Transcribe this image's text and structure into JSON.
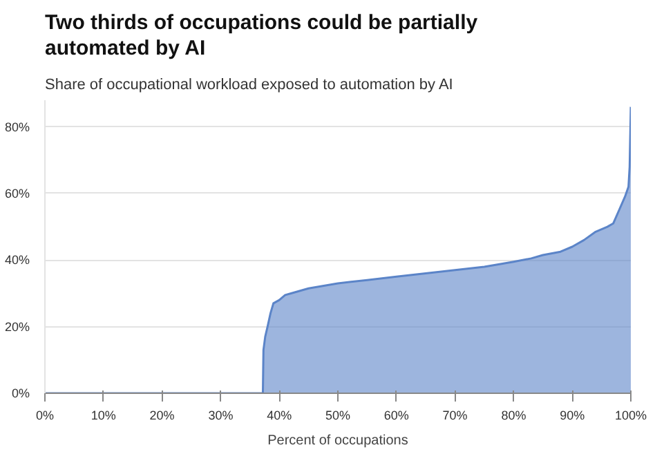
{
  "chart_data": {
    "type": "area",
    "title": "Two thirds of occupations could be partially automated by AI",
    "subtitle": "Share of occupational workload exposed to automation by AI",
    "xlabel": "Percent of occupations",
    "x": [
      0,
      37.2,
      37.3,
      37.6,
      38,
      38.5,
      39,
      40,
      41,
      42,
      45,
      50,
      55,
      60,
      65,
      70,
      75,
      80,
      83,
      85,
      88,
      90,
      92,
      94,
      96,
      97,
      98,
      99,
      99.6,
      99.8,
      100
    ],
    "series": [
      {
        "color": "#5b84c8",
        "values": [
          0,
          0,
          13,
          17,
          20,
          24,
          27,
          28,
          29.5,
          30,
          31.5,
          33,
          34,
          35,
          36,
          37,
          38,
          39.5,
          40.5,
          41.5,
          42.5,
          44,
          46,
          48.5,
          50,
          51,
          55,
          59,
          62,
          68,
          86
        ]
      }
    ],
    "xlim": [
      0,
      100
    ],
    "ylim": [
      0,
      88
    ],
    "xticks": [
      {
        "value": 0,
        "label": "0%"
      },
      {
        "value": 10,
        "label": "10%"
      },
      {
        "value": 20,
        "label": "20%"
      },
      {
        "value": 30,
        "label": "30%"
      },
      {
        "value": 40,
        "label": "40%"
      },
      {
        "value": 50,
        "label": "50%"
      },
      {
        "value": 60,
        "label": "60%"
      },
      {
        "value": 70,
        "label": "70%"
      },
      {
        "value": 80,
        "label": "80%"
      },
      {
        "value": 90,
        "label": "90%"
      },
      {
        "value": 100,
        "label": "100%"
      }
    ],
    "yticks": [
      {
        "value": 0,
        "label": "0%"
      },
      {
        "value": 20,
        "label": "20%"
      },
      {
        "value": 40,
        "label": "40%"
      },
      {
        "value": 60,
        "label": "60%"
      },
      {
        "value": 80,
        "label": "80%"
      }
    ],
    "grid": "y"
  }
}
